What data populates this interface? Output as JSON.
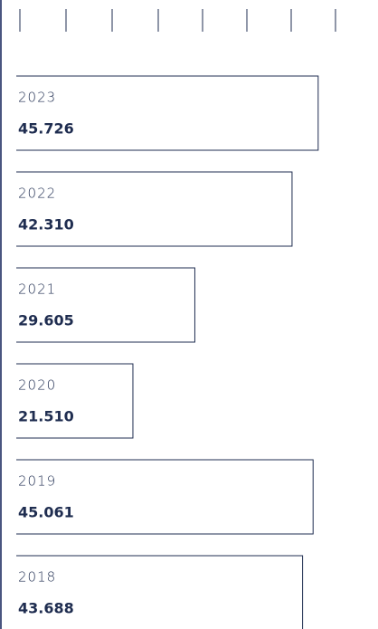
{
  "chart_data": {
    "type": "bar",
    "orientation": "horizontal",
    "categories": [
      "2023",
      "2022",
      "2021",
      "2020",
      "2019",
      "2018"
    ],
    "values": [
      45.726,
      42.31,
      29.605,
      21.51,
      45.061,
      43.688
    ],
    "value_labels": [
      "45.726",
      "42.310",
      "29.605",
      "21.510",
      "45.061",
      "43.688"
    ],
    "color": "#1f2d50",
    "xlim": [
      0,
      50
    ]
  }
}
